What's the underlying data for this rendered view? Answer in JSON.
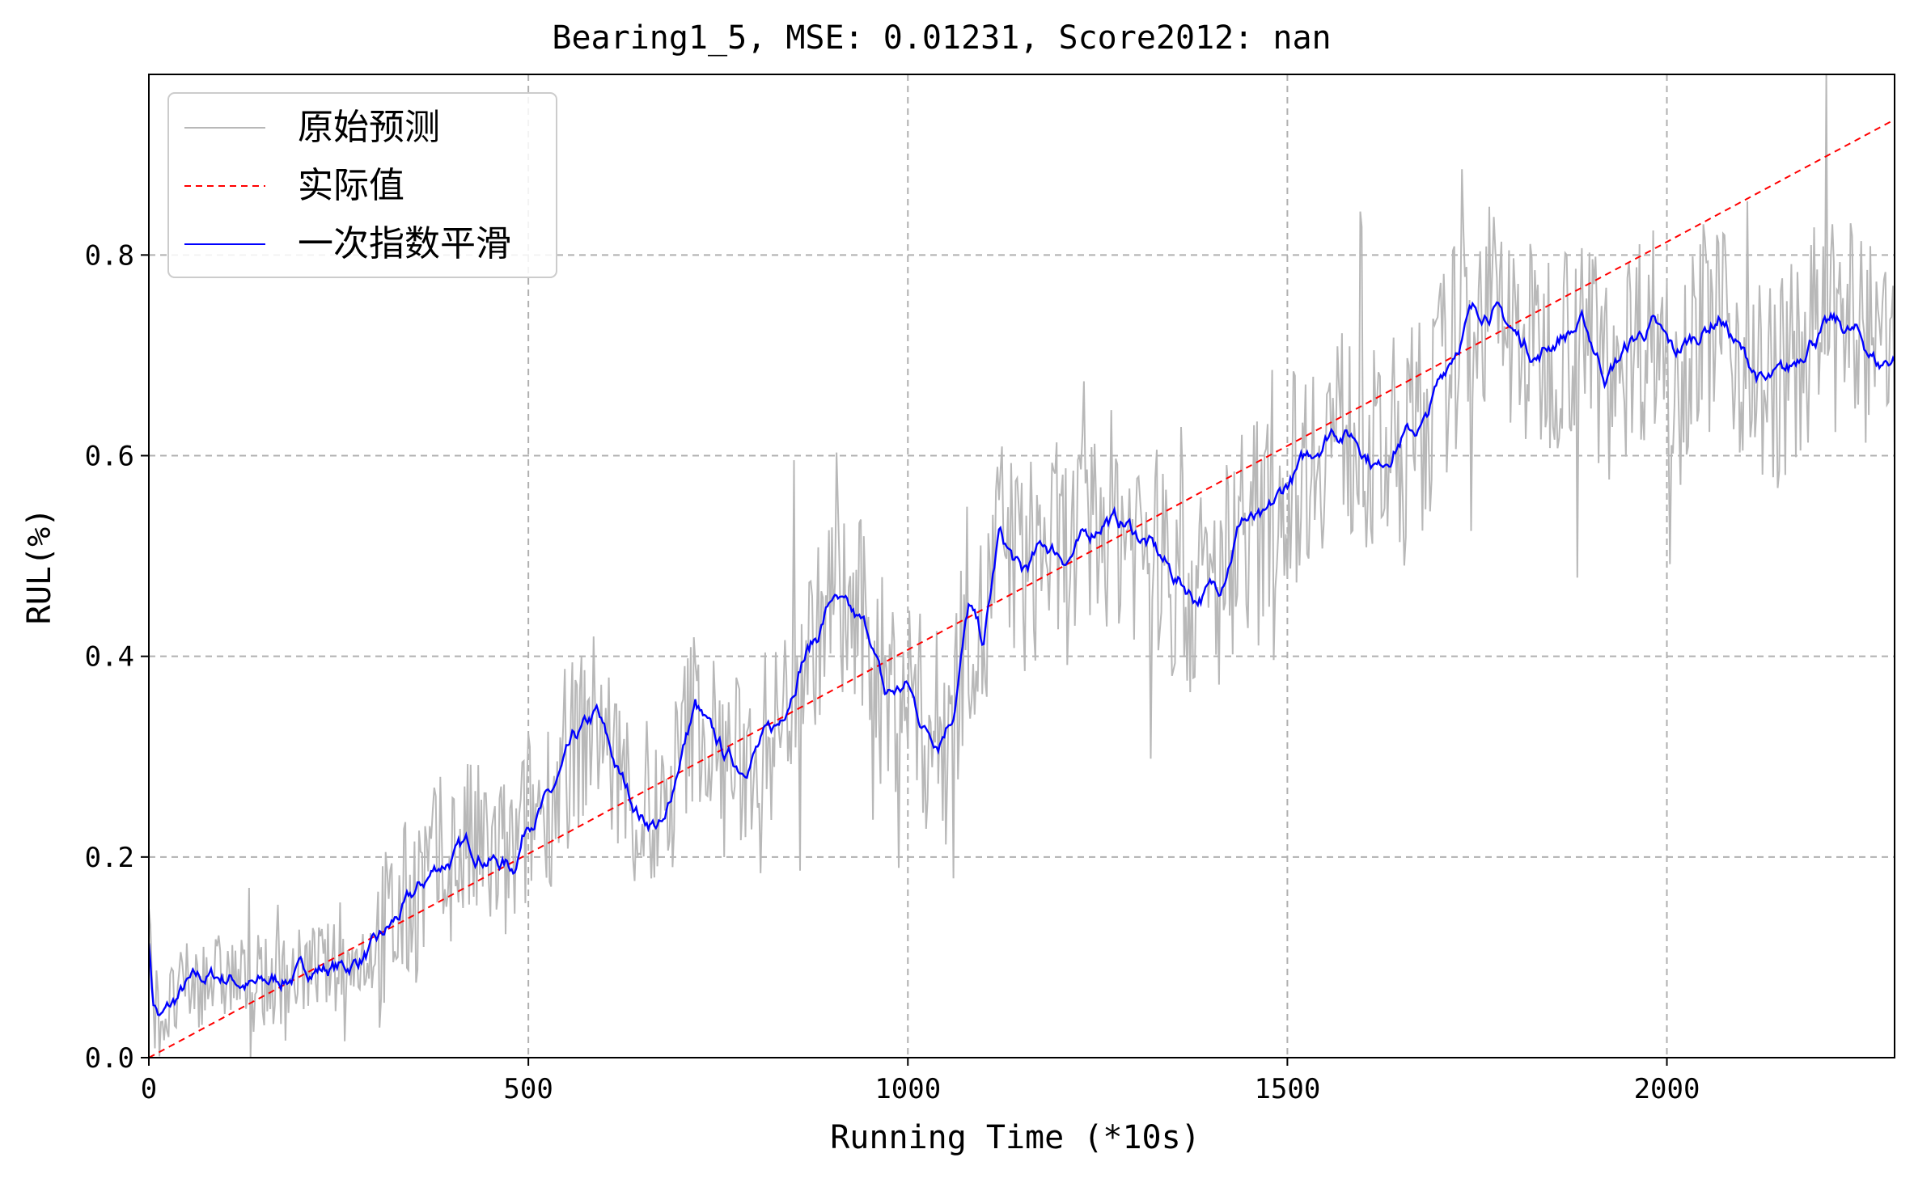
{
  "chart_data": {
    "type": "line",
    "title": "Bearing1_5, MSE: 0.01231, Score2012: nan",
    "xlabel": "Running Time (*10s)",
    "ylabel": "RUL(%)",
    "xlim": [
      0,
      2300
    ],
    "ylim": [
      0,
      0.98
    ],
    "xticks": [
      0,
      500,
      1000,
      1500,
      2000
    ],
    "xtick_labels": [
      "0",
      "500",
      "1000",
      "1500",
      "2000"
    ],
    "yticks": [
      0.0,
      0.2,
      0.4,
      0.6,
      0.8
    ],
    "ytick_labels": [
      "0.0",
      "0.2",
      "0.4",
      "0.6",
      "0.8"
    ],
    "grid": true,
    "legend_position": "top-left",
    "series": [
      {
        "name": "原始预测",
        "color": "#b8b8b8",
        "style": "solid",
        "x_range": [
          0,
          2300
        ],
        "generated": "noisy raw prediction around the smoothed curve, amplitude about 0.08–0.12"
      },
      {
        "name": "实际值",
        "color": "#ff0000",
        "style": "dashed",
        "x": [
          0,
          2300
        ],
        "y": [
          0.0,
          0.935
        ]
      },
      {
        "name": "一次指数平滑",
        "color": "#0000ff",
        "style": "solid",
        "x": [
          0,
          5,
          15,
          30,
          50,
          80,
          110,
          140,
          180,
          220,
          260,
          300,
          340,
          380,
          420,
          450,
          480,
          500,
          530,
          560,
          590,
          620,
          650,
          680,
          700,
          720,
          740,
          760,
          780,
          800,
          830,
          860,
          880,
          900,
          920,
          950,
          970,
          1000,
          1020,
          1040,
          1060,
          1080,
          1100,
          1120,
          1150,
          1180,
          1210,
          1240,
          1260,
          1290,
          1320,
          1350,
          1380,
          1410,
          1440,
          1470,
          1500,
          1530,
          1560,
          1590,
          1620,
          1650,
          1680,
          1710,
          1740,
          1770,
          1800,
          1830,
          1860,
          1890,
          1920,
          1950,
          1980,
          2010,
          2040,
          2070,
          2100,
          2130,
          2160,
          2190,
          2220,
          2250,
          2280,
          2300
        ],
        "y": [
          0.12,
          0.06,
          0.04,
          0.05,
          0.07,
          0.08,
          0.08,
          0.07,
          0.08,
          0.09,
          0.09,
          0.11,
          0.15,
          0.19,
          0.21,
          0.2,
          0.19,
          0.24,
          0.26,
          0.31,
          0.34,
          0.28,
          0.24,
          0.23,
          0.3,
          0.35,
          0.32,
          0.3,
          0.29,
          0.31,
          0.33,
          0.4,
          0.42,
          0.46,
          0.44,
          0.42,
          0.36,
          0.37,
          0.33,
          0.32,
          0.35,
          0.45,
          0.41,
          0.52,
          0.48,
          0.51,
          0.5,
          0.52,
          0.54,
          0.53,
          0.51,
          0.48,
          0.46,
          0.47,
          0.54,
          0.53,
          0.57,
          0.6,
          0.63,
          0.62,
          0.59,
          0.62,
          0.63,
          0.69,
          0.74,
          0.75,
          0.72,
          0.7,
          0.72,
          0.73,
          0.68,
          0.71,
          0.73,
          0.7,
          0.72,
          0.74,
          0.7,
          0.67,
          0.68,
          0.72,
          0.73,
          0.72,
          0.69,
          0.7
        ]
      }
    ]
  }
}
